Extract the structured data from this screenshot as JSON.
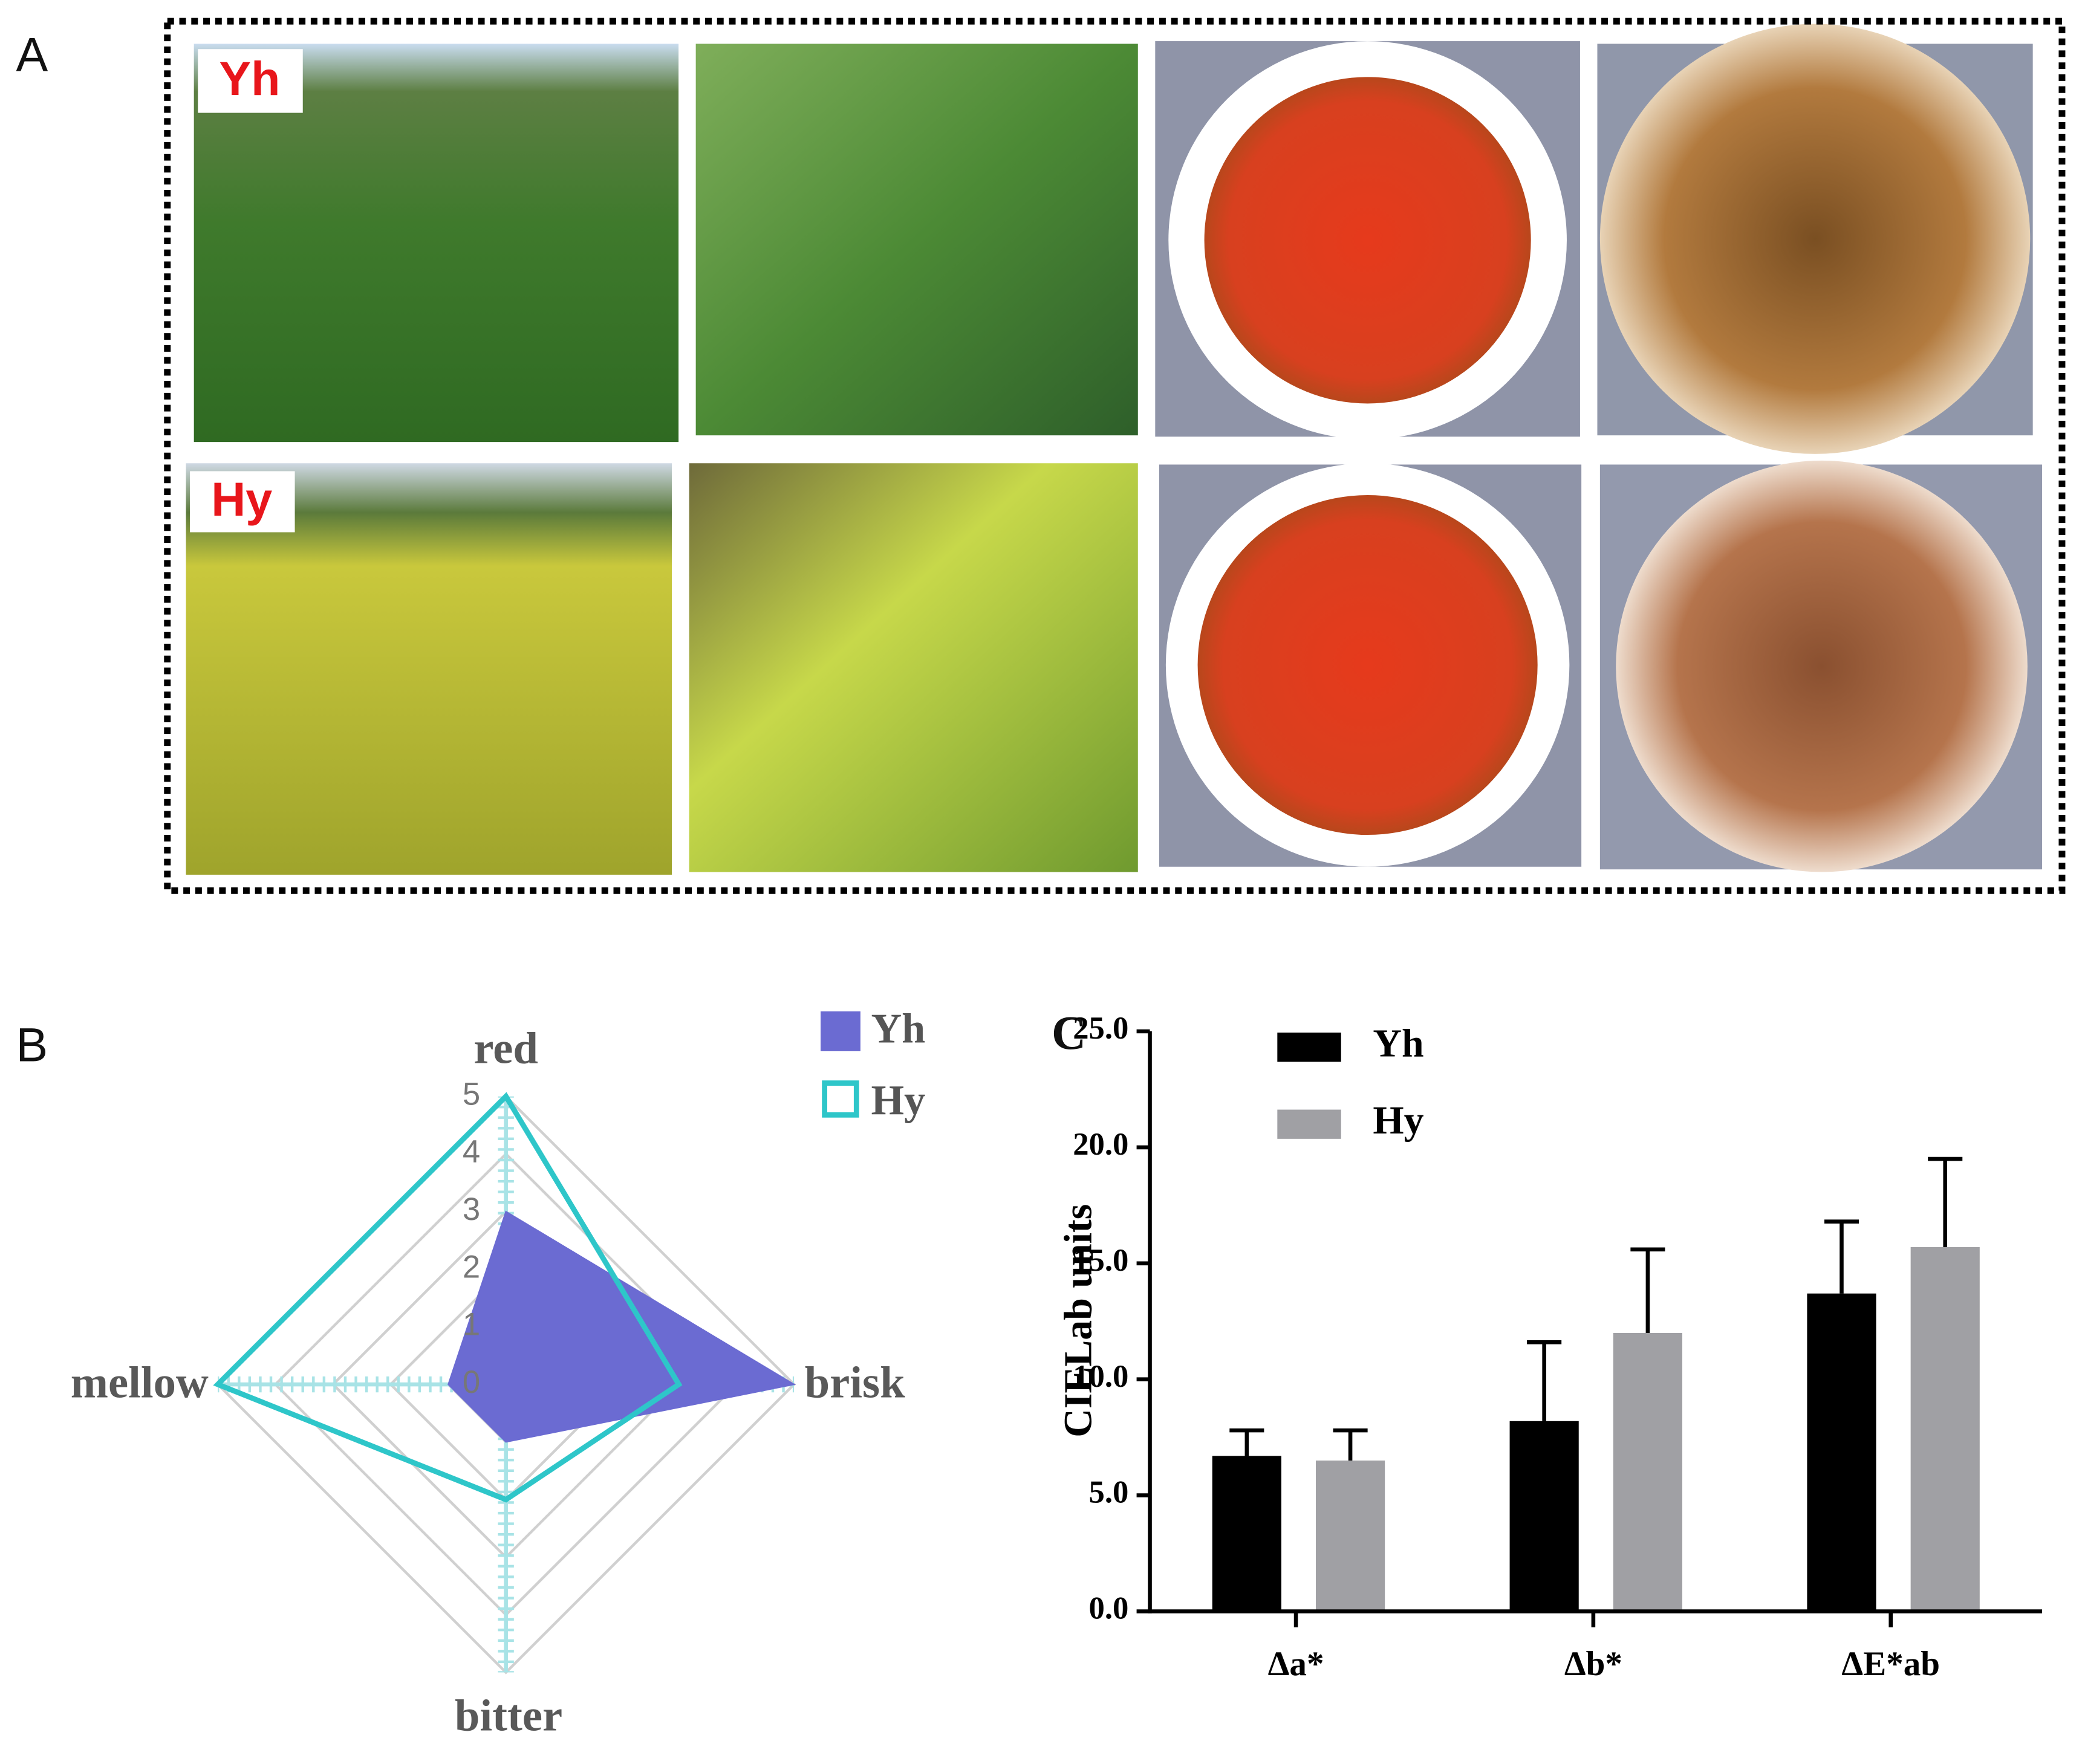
{
  "panel_labels": [
    "A",
    "B",
    "C"
  ],
  "photo_labels": [
    "Yh",
    "Hy"
  ],
  "chart_data": [
    {
      "type": "radar",
      "axes": [
        "red",
        "brisk",
        "bitter",
        "mellow"
      ],
      "rlim": [
        0,
        5
      ],
      "rticks": [
        0,
        1,
        2,
        3,
        4,
        5
      ],
      "series": [
        {
          "name": "Yh",
          "color": "#6b6bd2",
          "filled": true,
          "values": [
            3,
            5,
            1,
            1
          ]
        },
        {
          "name": "Hy",
          "color": "#2ec6c9",
          "filled": false,
          "values": [
            5,
            3,
            2,
            5
          ]
        }
      ]
    },
    {
      "type": "bar",
      "ylabel": "CIELab units",
      "categories": [
        "Δa*",
        "Δb*",
        "ΔE*ab"
      ],
      "ylim": [
        0,
        25
      ],
      "yticks": [
        {
          "value": 0,
          "label": "0.0"
        },
        {
          "value": 5,
          "label": "5.0"
        },
        {
          "value": 10,
          "label": "10.0"
        },
        {
          "value": 15,
          "label": "15.0"
        },
        {
          "value": 20,
          "label": "20.0"
        },
        {
          "value": 25,
          "label": "25.0"
        }
      ],
      "series": [
        {
          "name": "Yh",
          "color": "#000000",
          "values": [
            6.7,
            8.2,
            13.7
          ],
          "errors": [
            1.1,
            3.4,
            3.1
          ]
        },
        {
          "name": "Hy",
          "color": "#a0a0a4",
          "values": [
            6.5,
            12.0,
            15.7
          ],
          "errors": [
            1.3,
            3.6,
            3.8
          ]
        }
      ]
    }
  ]
}
